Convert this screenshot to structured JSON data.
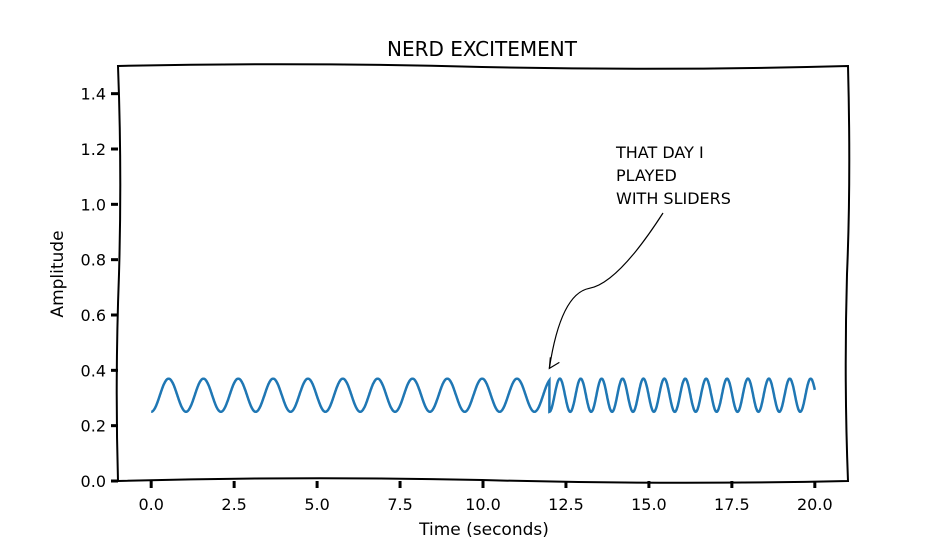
{
  "chart_data": {
    "type": "line",
    "title": "NERD EXCITEMENT",
    "xlabel": "Time (seconds)",
    "ylabel": "Amplitude",
    "xlim": [
      -1,
      21
    ],
    "ylim": [
      0,
      1.5
    ],
    "xticks": [
      "0.0",
      "2.5",
      "5.0",
      "7.5",
      "10.0",
      "12.5",
      "15.0",
      "17.5",
      "20.0"
    ],
    "yticks": [
      "0.0",
      "0.2",
      "0.4",
      "0.6",
      "0.8",
      "1.0",
      "1.2",
      "1.4"
    ],
    "grid": false,
    "series": [
      {
        "color": "#1f77b4",
        "segments": [
          {
            "x_start": 0,
            "x_end": 12,
            "baseline": 0.25,
            "amplitude": 0.12,
            "period": 1.05
          },
          {
            "x_start": 12,
            "x_end": 20,
            "baseline": 0.25,
            "amplitude": 0.12,
            "period": 0.63
          }
        ]
      }
    ],
    "annotation": {
      "lines": [
        "THAT DAY I",
        "PLAYED",
        "WITH SLIDERS"
      ],
      "point": [
        12.0,
        0.4
      ]
    }
  }
}
